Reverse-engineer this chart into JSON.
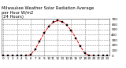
{
  "hours": [
    0,
    1,
    2,
    3,
    4,
    5,
    6,
    7,
    8,
    9,
    10,
    11,
    12,
    13,
    14,
    15,
    16,
    17,
    18,
    19,
    20,
    21,
    22,
    23
  ],
  "values": [
    0,
    0,
    0,
    0,
    0,
    0,
    20,
    120,
    280,
    430,
    560,
    640,
    670,
    650,
    590,
    480,
    340,
    180,
    50,
    5,
    0,
    0,
    0,
    0
  ],
  "line_color": "#ff0000",
  "marker_color": "#000000",
  "background_color": "#ffffff",
  "grid_color": "#888888",
  "title": "Milwaukee Weather Solar Radiation Average\nper Hour W/m2\n(24 Hours)",
  "ylim": [
    0,
    700
  ],
  "xlim": [
    -0.5,
    23.5
  ],
  "yticks": [
    0,
    100,
    200,
    300,
    400,
    500,
    600,
    700
  ],
  "title_fontsize": 3.8,
  "tick_fontsize": 3.0,
  "line_width": 0.7,
  "marker_size": 1.5
}
